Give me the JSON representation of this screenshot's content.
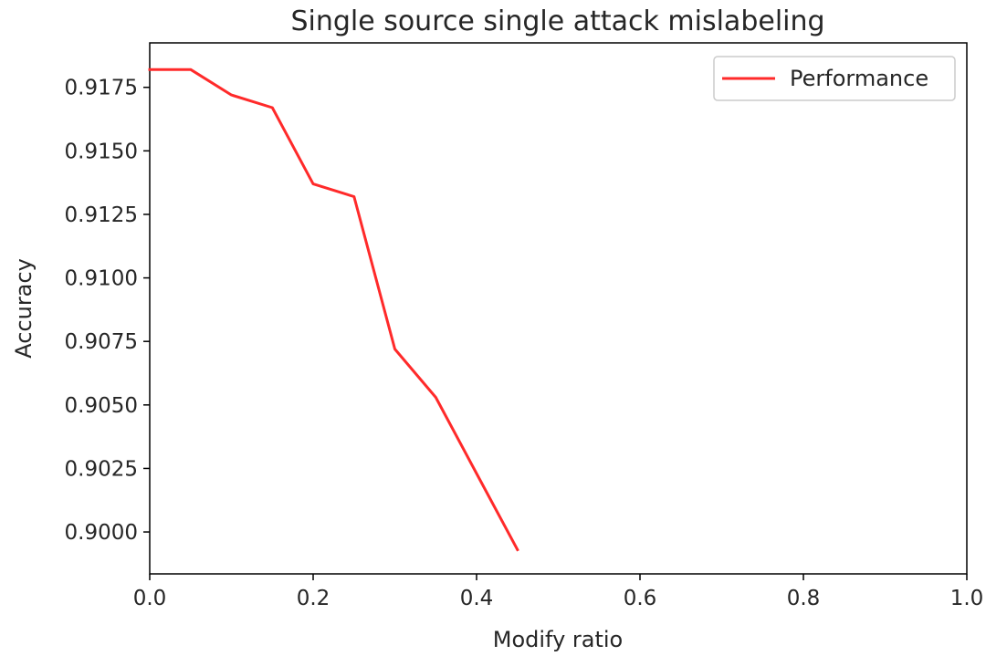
{
  "chart_data": {
    "type": "line",
    "title": "Single source single attack mislabeling",
    "xlabel": "Modify ratio",
    "ylabel": "Accuracy",
    "xlim": [
      0.0,
      1.0
    ],
    "ylim": [
      0.89835,
      0.91925
    ],
    "x_ticks": [
      "0.0",
      "0.2",
      "0.4",
      "0.6",
      "0.8",
      "1.0"
    ],
    "y_ticks": [
      "0.9000",
      "0.9025",
      "0.9050",
      "0.9075",
      "0.9100",
      "0.9125",
      "0.9150",
      "0.9175"
    ],
    "grid": false,
    "legend_position": "top-right",
    "series": [
      {
        "name": "Performance",
        "color": "#ff2a2a",
        "x": [
          0.0,
          0.05,
          0.1,
          0.15,
          0.2,
          0.25,
          0.3,
          0.35,
          0.4,
          0.45
        ],
        "y": [
          0.9182,
          0.9182,
          0.9172,
          0.9167,
          0.9137,
          0.9132,
          0.9072,
          0.9053,
          0.9023,
          0.8993
        ]
      }
    ]
  }
}
